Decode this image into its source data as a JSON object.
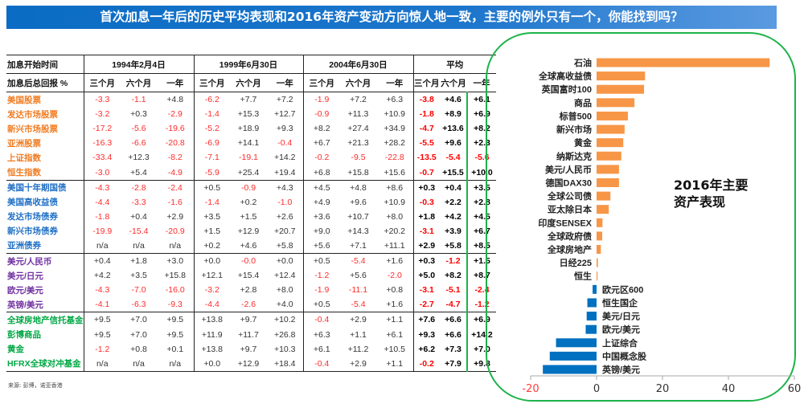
{
  "title": "首次加息一年后的历史平均表现和2016年资产变动方向惊人地一致，主要的例外只有一个，你能找到吗？",
  "table": {
    "header_row1_label": "加息开始时间",
    "header_row2_label": "加息后总回报 %",
    "periods": [
      "1994年2月4日",
      "1999年6月30日",
      "2004年6月30日",
      "平均"
    ],
    "subheaders": [
      "三个月",
      "六个月",
      "一年"
    ],
    "groups": [
      {
        "color": "#f07c22",
        "rows": [
          {
            "label": "美国股票",
            "values": [
              "-3.3",
              "-1.1",
              "+4.8",
              "-6.2",
              "+7.7",
              "+7.2",
              "-1.9",
              "+7.2",
              "+6.3",
              "-3.8",
              "+4.6",
              "+6.1"
            ]
          },
          {
            "label": "发达市场股票",
            "values": [
              "-3.2",
              "+0.3",
              "-2.9",
              "-1.4",
              "+15.3",
              "+12.7",
              "-0.9",
              "+11.3",
              "+10.9",
              "-1.8",
              "+8.9",
              "+6.9"
            ]
          },
          {
            "label": "新兴市场股票",
            "values": [
              "-17.2",
              "-5.6",
              "-19.6",
              "-5.2",
              "+18.9",
              "+9.3",
              "+8.2",
              "+27.4",
              "+34.9",
              "-4.7",
              "+13.6",
              "+8.2"
            ]
          },
          {
            "label": "亚洲股票",
            "values": [
              "-16.3",
              "-6.6",
              "-20.8",
              "-6.9",
              "+14.1",
              "-0.4",
              "+6.7",
              "+21.3",
              "+28.2",
              "-5.5",
              "+9.6",
              "+2.3"
            ]
          },
          {
            "label": "上证指数",
            "values": [
              "-33.4",
              "+12.3",
              "-8.2",
              "-7.1",
              "-19.1",
              "+14.2",
              "-0.2",
              "-9.5",
              "-22.8",
              "-13.5",
              "-5.4",
              "-5.6"
            ]
          },
          {
            "label": "恒生指数",
            "values": [
              "-3.0",
              "+5.4",
              "-4.9",
              "-5.9",
              "+25.4",
              "+19.4",
              "+6.8",
              "+15.8",
              "+15.6",
              "-0.7",
              "+15.5",
              "+10.0"
            ]
          }
        ]
      },
      {
        "color": "#1f6fc4",
        "rows": [
          {
            "label": "美国十年期国债",
            "values": [
              "-4.3",
              "-2.8",
              "-2.4",
              "+0.5",
              "-0.9",
              "+4.3",
              "+4.5",
              "+4.8",
              "+8.6",
              "+0.3",
              "+0.4",
              "+3.5"
            ]
          },
          {
            "label": "美国高收益债",
            "values": [
              "-4.4",
              "-3.3",
              "-1.6",
              "-1.4",
              "+0.2",
              "-1.0",
              "+4.9",
              "+9.6",
              "+10.9",
              "-0.3",
              "+2.2",
              "+2.8"
            ]
          },
          {
            "label": "发达市场债券",
            "values": [
              "-1.8",
              "+0.4",
              "+2.9",
              "+3.5",
              "+1.5",
              "+2.6",
              "+3.6",
              "+10.7",
              "+8.0",
              "+1.8",
              "+4.2",
              "+4.5"
            ]
          },
          {
            "label": "新兴市场债券",
            "values": [
              "-19.9",
              "-15.4",
              "-20.9",
              "+1.5",
              "+12.9",
              "+20.7",
              "+9.0",
              "+14.3",
              "+20.2",
              "-3.1",
              "+3.9",
              "+6.7"
            ]
          },
          {
            "label": "亚洲债券",
            "values": [
              "n/a",
              "n/a",
              "n/a",
              "+0.2",
              "+4.6",
              "+5.8",
              "+5.6",
              "+7.1",
              "+11.1",
              "+2.9",
              "+5.8",
              "+8.5"
            ]
          }
        ]
      },
      {
        "color": "#7030a0",
        "rows": [
          {
            "label": "美元/人民币",
            "values": [
              "+0.4",
              "+1.8",
              "+3.0",
              "+0.0",
              "-0.0",
              "+0.0",
              "+0.5",
              "-5.4",
              "+1.6",
              "+0.3",
              "-1.2",
              "+1.5"
            ]
          },
          {
            "label": "美元/日元",
            "values": [
              "+4.2",
              "+3.5",
              "+15.8",
              "+12.1",
              "+15.4",
              "+12.4",
              "-1.2",
              "+5.6",
              "-2.0",
              "+5.0",
              "+8.2",
              "+8.7"
            ]
          },
          {
            "label": "欧元/美元",
            "values": [
              "-4.3",
              "-7.0",
              "-16.0",
              "-3.2",
              "+2.8",
              "+8.0",
              "-1.9",
              "-11.1",
              "+0.8",
              "-3.1",
              "-5.1",
              "-2.4"
            ]
          },
          {
            "label": "英镑/美元",
            "values": [
              "-4.1",
              "-6.3",
              "-9.3",
              "-4.4",
              "-2.6",
              "+4.0",
              "+0.5",
              "-5.4",
              "+1.6",
              "-2.7",
              "-4.7",
              "-1.2"
            ]
          }
        ]
      },
      {
        "color": "#00a844",
        "rows": [
          {
            "label": "全球房地产信托基金",
            "values": [
              "+9.5",
              "+7.0",
              "+9.5",
              "+13.8",
              "+9.7",
              "+10.2",
              "-0.4",
              "+2.9",
              "+1.1",
              "+7.6",
              "+6.6",
              "+6.9"
            ]
          },
          {
            "label": "彭博商品",
            "values": [
              "+9.5",
              "+7.0",
              "+9.5",
              "+11.9",
              "+11.7",
              "+26.8",
              "+6.3",
              "+1.1",
              "+6.1",
              "+9.3",
              "+6.6",
              "+14.2"
            ]
          },
          {
            "label": "黄金",
            "values": [
              "-1.2",
              "+0.8",
              "+0.1",
              "+13.8",
              "+9.7",
              "+10.3",
              "+6.1",
              "+11.2",
              "+10.5",
              "+6.2",
              "+7.3",
              "+7.0"
            ]
          },
          {
            "label": "HFRX全球对冲基金",
            "values": [
              "n/a",
              "n/a",
              "n/a",
              "+0.0",
              "+12.9",
              "+18.4",
              "-0.4",
              "+2.9",
              "+1.1",
              "-0.2",
              "+7.9",
              "+9.8"
            ]
          }
        ]
      }
    ]
  },
  "source": "来源: 彭博，诺亚香港",
  "chart_title_line1": "2016年主要",
  "chart_title_line2": "资产表现",
  "chart_data": {
    "type": "bar",
    "orientation": "horizontal",
    "categories": [
      "石油",
      "全球高收益债",
      "英国富时100",
      "商品",
      "标普500",
      "新兴市场",
      "黄金",
      "纳斯达克",
      "美元/人民币",
      "德国DAX30",
      "全球公司债",
      "亚太除日本",
      "印度SENSEX",
      "全球政府债",
      "全球房地产",
      "日经225",
      "恒生",
      "欧元区600",
      "恒生国企",
      "美元/日元",
      "欧元/美元",
      "上证综合",
      "中国概念股",
      "英镑/美元"
    ],
    "values": [
      52.5,
      14.7,
      14.4,
      11.5,
      9.5,
      8.5,
      8.1,
      7.5,
      6.8,
      6.8,
      4.2,
      3.7,
      1.8,
      1.7,
      1.3,
      0.4,
      0.3,
      -1.2,
      -2.8,
      -3.0,
      -3.3,
      -12.3,
      -14.2,
      -16.3
    ],
    "xlim": [
      -20,
      60
    ],
    "xticks": [
      -20,
      0,
      20,
      40,
      60
    ],
    "positive_color": "#f79646",
    "negative_color": "#0070c0",
    "negative_tick_color": "#ff3b3b",
    "grid": false
  },
  "colors": {
    "frame": "#1db34a",
    "title_bg": "#0a6cc4"
  }
}
